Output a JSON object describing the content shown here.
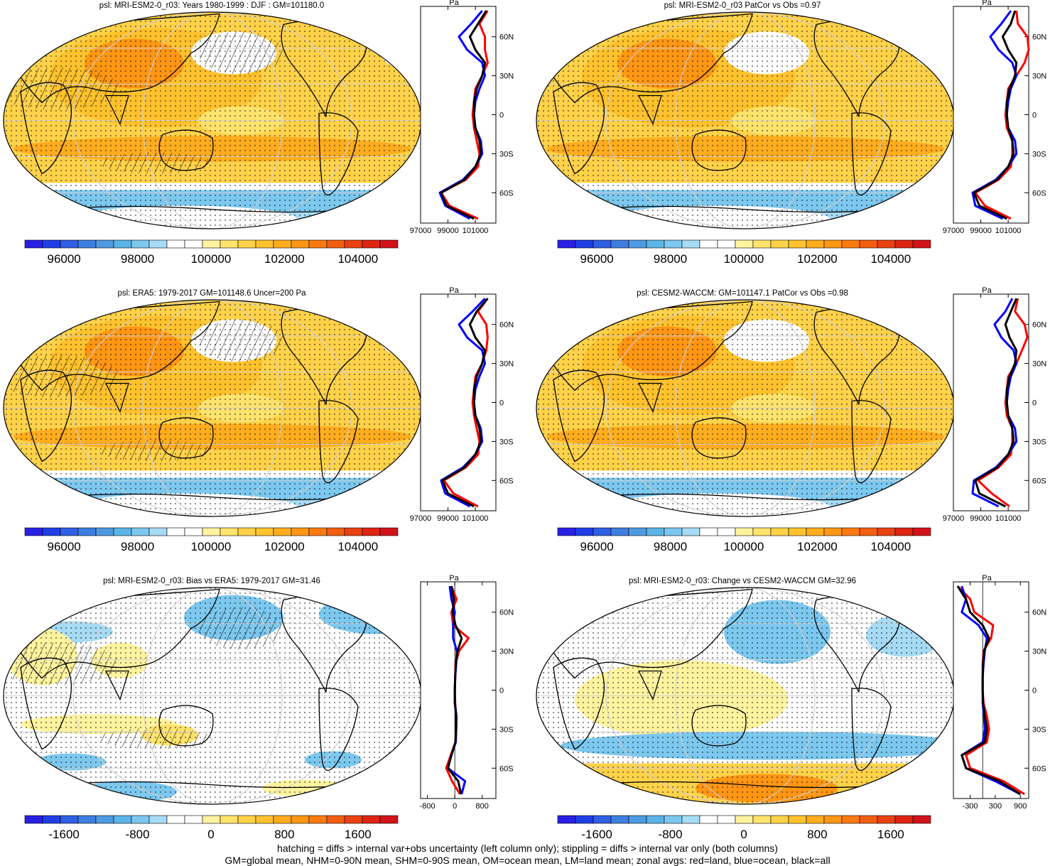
{
  "colors": {
    "abs_scale": [
      "#2a1fe6",
      "#1f3ee8",
      "#2f5fe3",
      "#3e7ee0",
      "#4d9ae2",
      "#5ab4e8",
      "#7cc8ef",
      "#a7dbf5",
      "#ffffff",
      "#ffffff",
      "#fff39f",
      "#ffe36d",
      "#ffd24a",
      "#ffc22e",
      "#ffad1e",
      "#ff9614",
      "#fb7a10",
      "#f45e10",
      "#ea4111",
      "#de2413",
      "#d2121a"
    ],
    "diff_scale": [
      "#2a1fe6",
      "#1f3ee8",
      "#2f5fe3",
      "#3e7ee0",
      "#4d9ae2",
      "#5ab4e8",
      "#7cc8ef",
      "#a7dbf5",
      "#ffffff",
      "#ffffff",
      "#fff39f",
      "#ffe36d",
      "#ffd24a",
      "#ffc22e",
      "#ffad1e",
      "#ff9614",
      "#fb7a10",
      "#f45e10",
      "#ea4111",
      "#de2413",
      "#d2121a"
    ],
    "land_line": "#ff0000",
    "ocean_line": "#0000ff",
    "all_line": "#000000"
  },
  "chart_data": [
    {
      "type": "heatmap",
      "panel": "model_mean",
      "title": "psl: MRI-ESM2-0_r03: Years 1980-1999 : DJF : GM=101180.0",
      "colorbar_ticks": [
        "96000",
        "98000",
        "100000",
        "102000",
        "104000"
      ],
      "zonal_profile": {
        "ytick_labels": [
          "60N",
          "30N",
          "0",
          "30S",
          "60S"
        ],
        "xtick_labels": [
          "97000",
          "99000",
          "101000"
        ],
        "unit": "Pa",
        "lat": [
          80,
          70,
          60,
          50,
          40,
          30,
          20,
          10,
          0,
          -10,
          -20,
          -30,
          -40,
          -50,
          -60,
          -70,
          -80
        ],
        "land": [
          101900,
          101300,
          101700,
          101700,
          101900,
          101500,
          101000,
          100900,
          100800,
          100900,
          101100,
          101300,
          101200,
          100300,
          98500,
          99100,
          101200
        ],
        "ocean": [
          101500,
          100700,
          99800,
          100400,
          101500,
          101700,
          101300,
          101000,
          100900,
          101000,
          101400,
          101500,
          101000,
          100100,
          98400,
          98800,
          100600
        ],
        "all": [
          101800,
          101200,
          100600,
          101000,
          101700,
          101500,
          101100,
          100900,
          100900,
          101000,
          101300,
          101400,
          101000,
          100200,
          98500,
          98900,
          100900
        ]
      }
    },
    {
      "type": "heatmap",
      "panel": "model_patcor",
      "title": "psl: MRI-ESM2-0_r03 PatCor vs Obs =0.97",
      "colorbar_ticks": [
        "96000",
        "98000",
        "100000",
        "102000",
        "104000"
      ],
      "zonal_profile": {
        "ytick_labels": [
          "60N",
          "30N",
          "0",
          "30S",
          "60S"
        ],
        "xtick_labels": [
          "97000",
          "99000",
          "101000"
        ],
        "unit": "Pa",
        "lat": [
          80,
          70,
          60,
          50,
          40,
          30,
          20,
          10,
          0,
          -10,
          -20,
          -30,
          -40,
          -50,
          -60,
          -70,
          -80
        ],
        "land": [
          101600,
          101700,
          102400,
          102500,
          102200,
          101600,
          101000,
          100900,
          100800,
          100900,
          101300,
          101300,
          101200,
          100300,
          98600,
          99300,
          101200
        ],
        "ocean": [
          101200,
          100500,
          99700,
          100300,
          101300,
          101600,
          101200,
          101000,
          100900,
          101000,
          101500,
          101600,
          101000,
          100100,
          98400,
          98600,
          100600
        ],
        "all": [
          101500,
          101200,
          100600,
          101000,
          101600,
          101500,
          101100,
          100900,
          100900,
          101000,
          101300,
          101400,
          101000,
          100200,
          98500,
          98900,
          100900
        ]
      }
    },
    {
      "type": "heatmap",
      "panel": "obs",
      "title": "psl: ERA5: 1979-2017 GM=101148.6 Uncer=200 Pa",
      "colorbar_ticks": [
        "96000",
        "98000",
        "100000",
        "102000",
        "104000"
      ],
      "zonal_profile": {
        "ytick_labels": [
          "60N",
          "30N",
          "0",
          "30S",
          "60S"
        ],
        "xtick_labels": [
          "97000",
          "99000",
          "101000"
        ],
        "unit": "Pa",
        "lat": [
          80,
          70,
          60,
          50,
          40,
          30,
          20,
          10,
          0,
          -10,
          -20,
          -30,
          -40,
          -50,
          -60,
          -70,
          -80
        ],
        "land": [
          101900,
          101200,
          101800,
          101900,
          101800,
          101500,
          101000,
          100900,
          100800,
          100900,
          101100,
          101300,
          101200,
          100300,
          98700,
          99400,
          101200
        ],
        "ocean": [
          101700,
          100800,
          99800,
          100400,
          101500,
          101700,
          101300,
          101000,
          100900,
          101000,
          101400,
          101500,
          101000,
          100100,
          98500,
          98800,
          100600
        ],
        "all": [
          101900,
          101100,
          100600,
          101000,
          101700,
          101500,
          101100,
          100900,
          100900,
          101000,
          101300,
          101400,
          101000,
          100200,
          98600,
          99000,
          100900
        ]
      }
    },
    {
      "type": "heatmap",
      "panel": "ref_model",
      "title": "psl: CESM2-WACCM: GM=101147.1 PatCor vs Obs =0.98",
      "colorbar_ticks": [
        "96000",
        "98000",
        "100000",
        "102000",
        "104000"
      ],
      "zonal_profile": {
        "ytick_labels": [
          "60N",
          "30N",
          "0",
          "30S",
          "60S"
        ],
        "xtick_labels": [
          "97000",
          "99000",
          "101000"
        ],
        "unit": "Pa",
        "lat": [
          80,
          70,
          60,
          50,
          40,
          30,
          20,
          10,
          0,
          -10,
          -20,
          -30,
          -40,
          -50,
          -60,
          -70,
          -80
        ],
        "land": [
          101700,
          101500,
          102200,
          102400,
          102000,
          101600,
          101000,
          100900,
          100800,
          100900,
          101300,
          101300,
          101200,
          100300,
          98800,
          99800,
          101100
        ],
        "ocean": [
          101300,
          100800,
          100000,
          100500,
          101400,
          101600,
          101200,
          101000,
          100900,
          101000,
          101500,
          101600,
          101000,
          100100,
          98500,
          98400,
          100300
        ],
        "all": [
          101600,
          101200,
          100800,
          101100,
          101600,
          101500,
          101100,
          100900,
          100900,
          101000,
          101300,
          101400,
          101000,
          100200,
          98600,
          98900,
          100800
        ]
      }
    },
    {
      "type": "heatmap",
      "panel": "bias",
      "title": "psl: MRI-ESM2-0_r03: Bias vs ERA5: 1979-2017 GM=31.46",
      "colorbar_ticks": [
        "-1600",
        "-800",
        "0",
        "800",
        "1600"
      ],
      "zonal_profile": {
        "ytick_labels": [
          "60N",
          "30N",
          "0",
          "30S",
          "60S"
        ],
        "xtick_labels": [
          "-800",
          "0",
          "800"
        ],
        "unit": "Pa",
        "lat": [
          80,
          70,
          60,
          50,
          40,
          30,
          20,
          10,
          0,
          -10,
          -20,
          -30,
          -40,
          -50,
          -60,
          -70,
          -80
        ],
        "land": [
          -100,
          50,
          -100,
          -50,
          400,
          120,
          20,
          10,
          0,
          10,
          40,
          40,
          20,
          -120,
          -250,
          -80,
          150
        ],
        "ocean": [
          -150,
          -100,
          0,
          -50,
          -50,
          60,
          40,
          10,
          0,
          0,
          50,
          40,
          30,
          -100,
          -200,
          300,
          200
        ],
        "all": [
          -100,
          -30,
          -60,
          20,
          200,
          80,
          30,
          10,
          0,
          0,
          40,
          40,
          20,
          -100,
          -200,
          100,
          180
        ]
      }
    },
    {
      "type": "heatmap",
      "panel": "change",
      "title": "psl: MRI-ESM2-0_r03: Change vs CESM2-WACCM GM=32.96",
      "colorbar_ticks": [
        "-1600",
        "-800",
        "0",
        "800",
        "1600"
      ],
      "zonal_profile": {
        "ytick_labels": [
          "60N",
          "30N",
          "0",
          "30S",
          "60S"
        ],
        "xtick_labels": [
          "-300",
          "300",
          "900"
        ],
        "unit": "Pa",
        "lat": [
          80,
          70,
          60,
          50,
          40,
          30,
          20,
          10,
          0,
          -10,
          -20,
          -30,
          -40,
          -50,
          -60,
          -70,
          -80
        ],
        "land": [
          -600,
          -300,
          -200,
          250,
          200,
          20,
          0,
          0,
          0,
          20,
          100,
          150,
          100,
          -400,
          -300,
          500,
          1000
        ],
        "ocean": [
          -500,
          -400,
          -500,
          -100,
          100,
          50,
          20,
          0,
          0,
          0,
          30,
          50,
          0,
          -500,
          -400,
          300,
          900
        ],
        "all": [
          -600,
          -400,
          -300,
          0,
          150,
          30,
          10,
          0,
          0,
          10,
          50,
          100,
          50,
          -500,
          -400,
          400,
          900
        ]
      }
    }
  ],
  "footer": {
    "line1": "hatching = diffs > internal var+obs uncertainty (left column only); stippling = diffs > internal var only (both columns)",
    "line2": "GM=global mean, NHM=0-90N mean, SHM=0-90S mean, OM=ocean mean, LM=land mean; zonal avgs: red=land, blue=ocean, black=all"
  }
}
